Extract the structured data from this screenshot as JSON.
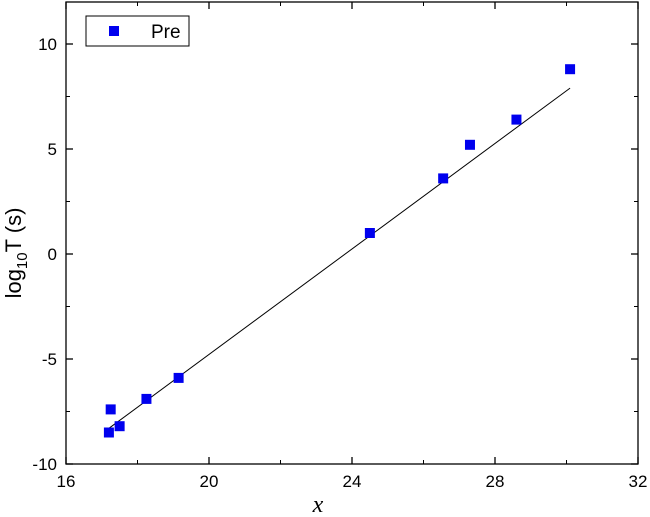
{
  "chart_data": {
    "type": "scatter",
    "xlabel": "x",
    "ylabel_main": "log",
    "ylabel_sub": "10",
    "ylabel_rest": "T (s)",
    "xlim": [
      16,
      32
    ],
    "ylim": [
      -10,
      12
    ],
    "xticks": [
      16,
      20,
      24,
      28,
      32
    ],
    "yticks": [
      -10,
      -5,
      0,
      5,
      10
    ],
    "grid": false,
    "legend_position": "top-left",
    "marker_color": "#0000ee",
    "series": [
      {
        "name": "Pre",
        "points": [
          {
            "x": 17.2,
            "y": -8.5
          },
          {
            "x": 17.25,
            "y": -7.4
          },
          {
            "x": 17.5,
            "y": -8.2
          },
          {
            "x": 18.25,
            "y": -6.9
          },
          {
            "x": 19.15,
            "y": -5.9
          },
          {
            "x": 24.5,
            "y": 1.0
          },
          {
            "x": 26.55,
            "y": 3.6
          },
          {
            "x": 27.3,
            "y": 5.2
          },
          {
            "x": 28.6,
            "y": 6.4
          },
          {
            "x": 30.1,
            "y": 8.8
          }
        ]
      }
    ],
    "fit_line": {
      "x1": 17.2,
      "y1": -8.3,
      "x2": 30.1,
      "y2": 7.9,
      "color": "#000000"
    }
  }
}
